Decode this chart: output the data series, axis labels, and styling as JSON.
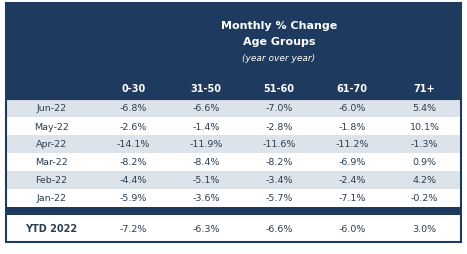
{
  "title_line1": "Monthly % Change",
  "title_line2": "Age Groups",
  "title_line3": "(year over year)",
  "col_headers": [
    "0-30",
    "31-50",
    "51-60",
    "61-70",
    "71+"
  ],
  "row_labels": [
    "Jun-22",
    "May-22",
    "Apr-22",
    "Mar-22",
    "Feb-22",
    "Jan-22"
  ],
  "ytd_label": "YTD 2022",
  "table_data": [
    [
      "-6.8%",
      "-6.6%",
      "-7.0%",
      "-6.0%",
      "5.4%"
    ],
    [
      "-2.6%",
      "-1.4%",
      "-2.8%",
      "-1.8%",
      "10.1%"
    ],
    [
      "-14.1%",
      "-11.9%",
      "-11.6%",
      "-11.2%",
      "-1.3%"
    ],
    [
      "-8.2%",
      "-8.4%",
      "-8.2%",
      "-6.9%",
      "0.9%"
    ],
    [
      "-4.4%",
      "-5.1%",
      "-3.4%",
      "-2.4%",
      "4.2%"
    ],
    [
      "-5.9%",
      "-3.6%",
      "-5.7%",
      "-7.1%",
      "-0.2%"
    ]
  ],
  "ytd_data": [
    "-7.2%",
    "-6.3%",
    "-6.6%",
    "-6.0%",
    "3.0%"
  ],
  "header_bg": "#1e3a5f",
  "header_text": "#ffffff",
  "row_odd_bg": "#dde3ea",
  "row_even_bg": "#ffffff",
  "ytd_bg": "#ffffff",
  "separator_bg": "#1e3a5f",
  "border_color": "#1e3a5f",
  "text_color": "#2c3e50"
}
